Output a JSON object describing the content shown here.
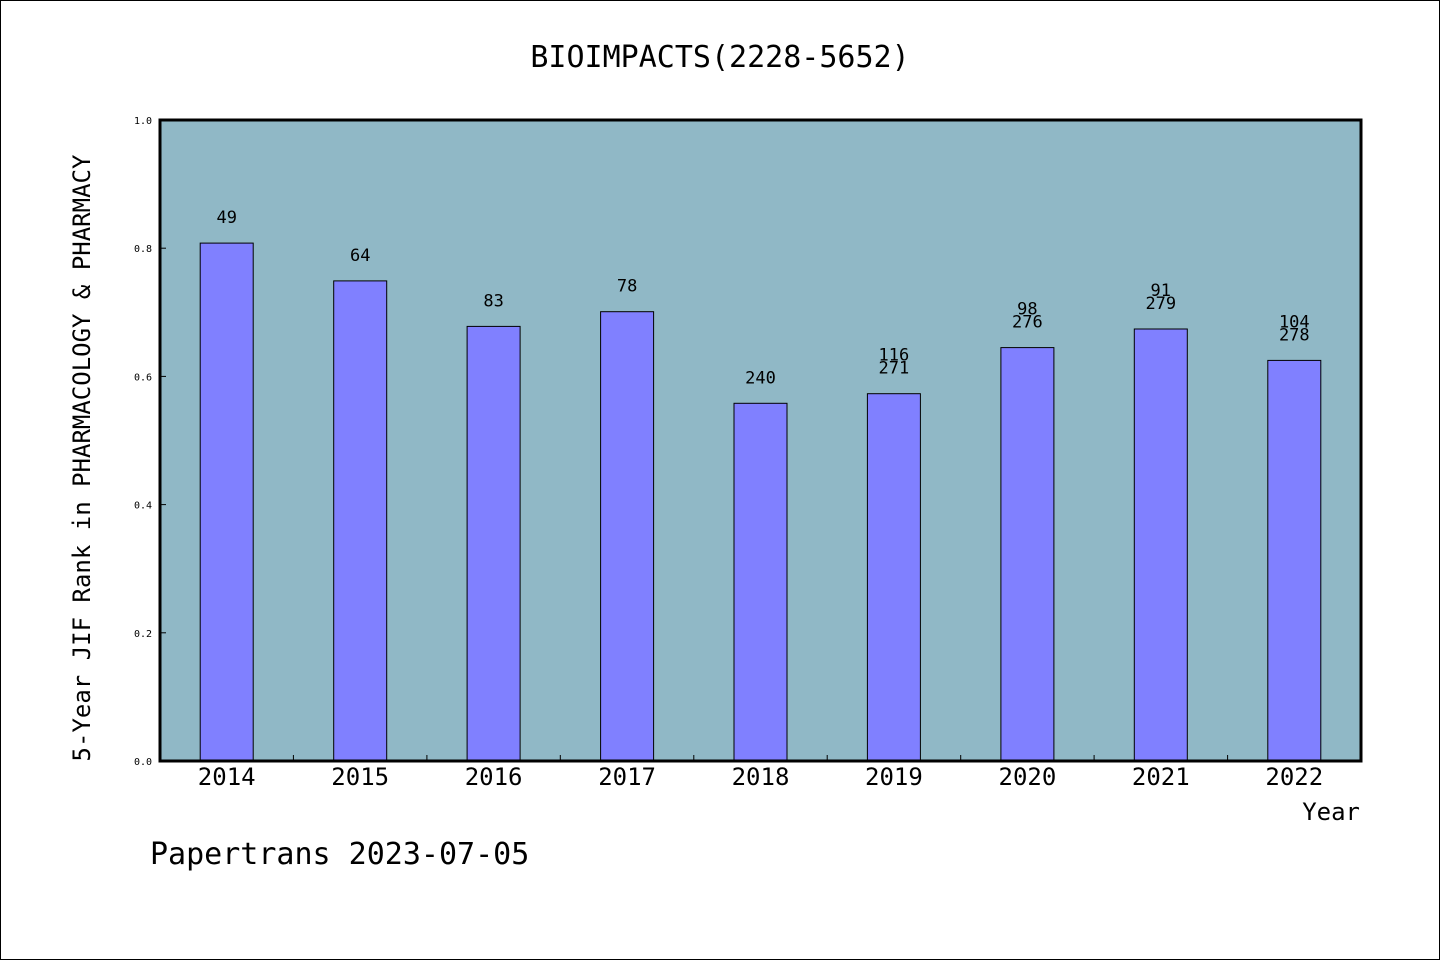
{
  "chart_data": {
    "type": "bar",
    "title": "BIOIMPACTS(2228-5652)",
    "xlabel": "Year",
    "ylabel": "5-Year JIF Rank in PHARMACOLOGY & PHARMACY",
    "ylim": [
      0,
      1.0
    ],
    "yticks": [
      "0.0",
      "0.2",
      "0.4",
      "0.6",
      "0.8",
      "1.0"
    ],
    "categories": [
      "2014",
      "2015",
      "2016",
      "2017",
      "2018",
      "2019",
      "2020",
      "2021",
      "2022"
    ],
    "values": [
      0.808,
      0.749,
      0.678,
      0.701,
      0.558,
      0.573,
      0.645,
      0.674,
      0.625
    ],
    "bar_labels": [
      [
        "49"
      ],
      [
        "64"
      ],
      [
        "83"
      ],
      [
        "78"
      ],
      [
        "240"
      ],
      [
        "116",
        "271"
      ],
      [
        "98",
        "276"
      ],
      [
        "91",
        "279"
      ],
      [
        "104",
        "278"
      ]
    ],
    "grid": false,
    "colors": {
      "bar": "#8080ff",
      "plot_bg": "#90b8c6",
      "axis": "#000000"
    }
  },
  "footer": {
    "credit": "Papertrans 2023-07-05"
  }
}
